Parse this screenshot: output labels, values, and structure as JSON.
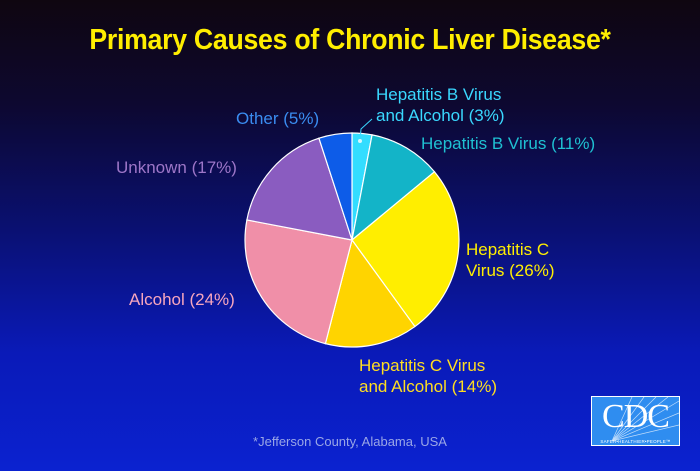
{
  "title": "Primary Causes of Chronic Liver Disease*",
  "footnote": "*Jefferson County, Alabama, USA",
  "logo": {
    "text": "CDC",
    "tagline": "SAFER•HEALTHIER•PEOPLE™"
  },
  "labels": {
    "hbv_alc_1": "Hepatitis B Virus",
    "hbv_alc_2": "and Alcohol (3%)",
    "hbv": "Hepatitis B Virus (11%)",
    "hcv_1": "Hepatitis C",
    "hcv_2": "Virus (26%)",
    "hcv_alc_1": "Hepatitis C Virus",
    "hcv_alc_2": "and Alcohol (14%)",
    "alcohol": "Alcohol (24%)",
    "unknown": "Unknown (17%)",
    "other": "Other (5%)"
  },
  "chart_data": {
    "type": "pie",
    "title": "Primary Causes of Chronic Liver Disease*",
    "footnote": "*Jefferson County, Alabama, USA",
    "start_angle": "12 o'clock, clockwise",
    "categories": [
      "Hepatitis B Virus and Alcohol",
      "Hepatitis B Virus",
      "Hepatitis C Virus",
      "Hepatitis C Virus and Alcohol",
      "Alcohol",
      "Unknown",
      "Other"
    ],
    "values": [
      3,
      11,
      26,
      14,
      24,
      17,
      5
    ],
    "colors": [
      "#33ddff",
      "#13b4c8",
      "#ffee00",
      "#ffd400",
      "#f08fa8",
      "#8a5cc0",
      "#0d5ce8"
    ],
    "units": "%"
  }
}
